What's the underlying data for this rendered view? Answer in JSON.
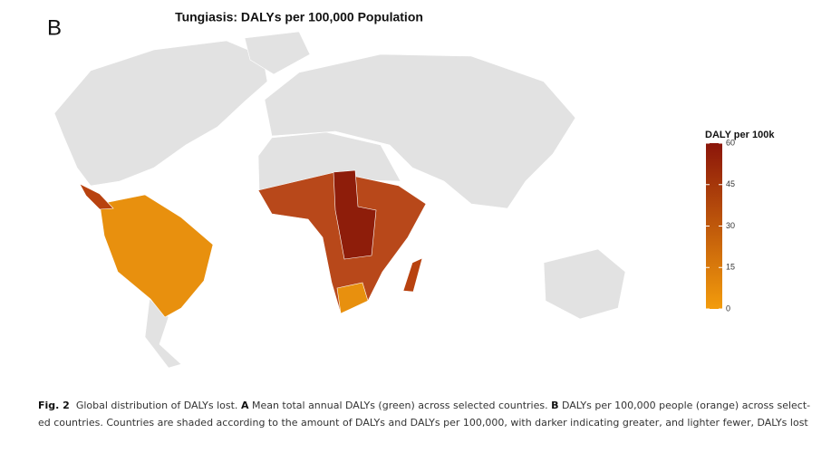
{
  "panel_label": "B",
  "title": "Tungiasis: DALYs per 100,000 Population",
  "legend": {
    "title": "DALY per 100k",
    "range": [
      0,
      60
    ],
    "ticks": [
      0,
      15,
      30,
      45,
      60
    ],
    "colors": [
      "#f39c0c",
      "#8b150a"
    ]
  },
  "caption": {
    "lines": [
      [
        {
          "text": "Fig. 2",
          "bold": true
        },
        {
          "text": "  Global distribution of DALYs lost. ",
          "bold": false
        },
        {
          "text": "A",
          "bold": true
        },
        {
          "text": " Mean total annual DALYs (green) across selected countries. ",
          "bold": false
        },
        {
          "text": "B",
          "bold": true
        },
        {
          "text": " DALYs per 100,000 people (orange) across select-",
          "bold": false
        }
      ],
      [
        {
          "text": "ed countries. Countries are shaded according to the amount of DALYs and DALYs per 100,000, with darker indicating greater, and lighter fewer, DALYs lost",
          "bold": false
        }
      ]
    ]
  }
}
